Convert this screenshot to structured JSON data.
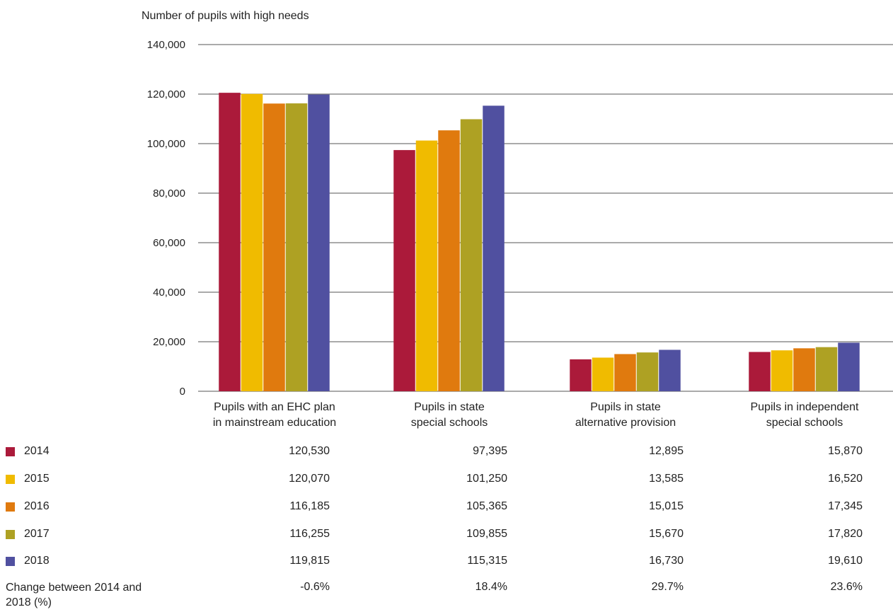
{
  "chart_data": {
    "type": "bar",
    "title": "Number of pupils with high needs",
    "ylim": [
      0,
      140000
    ],
    "yticks": [
      "0",
      "20,000",
      "40,000",
      "60,000",
      "80,000",
      "100,000",
      "120,000",
      "140,000"
    ],
    "ytick_values": [
      0,
      20000,
      40000,
      60000,
      80000,
      100000,
      120000,
      140000
    ],
    "grid": true,
    "categories": [
      [
        "Pupils with an EHC plan",
        "in mainstream education"
      ],
      [
        "Pupils in state",
        "special schools"
      ],
      [
        "Pupils in state",
        "alternative provision"
      ],
      [
        "Pupils in independent",
        "special schools"
      ]
    ],
    "series": [
      {
        "name": "2014",
        "color": "#ab1a3a",
        "values": [
          120530,
          97395,
          12895,
          15870
        ],
        "display": [
          "120,530",
          "97,395",
          "12,895",
          "15,870"
        ]
      },
      {
        "name": "2015",
        "color": "#f0bb00",
        "values": [
          120070,
          101250,
          13585,
          16520
        ],
        "display": [
          "120,070",
          "101,250",
          "13,585",
          "16,520"
        ]
      },
      {
        "name": "2016",
        "color": "#e07a0e",
        "values": [
          116185,
          105365,
          15015,
          17345
        ],
        "display": [
          "116,185",
          "105,365",
          "15,015",
          "17,345"
        ]
      },
      {
        "name": "2017",
        "color": "#aea123",
        "values": [
          116255,
          109855,
          15670,
          17820
        ],
        "display": [
          "116,255",
          "109,855",
          "15,670",
          "17,820"
        ]
      },
      {
        "name": "2018",
        "color": "#5050a0",
        "values": [
          119815,
          115315,
          16730,
          19610
        ],
        "display": [
          "119,815",
          "115,315",
          "16,730",
          "19,610"
        ]
      }
    ],
    "change": {
      "label": "Change between 2014 and 2018 (%)",
      "values": [
        "-0.6%",
        "18.4%",
        "29.7%",
        "23.6%"
      ]
    }
  }
}
